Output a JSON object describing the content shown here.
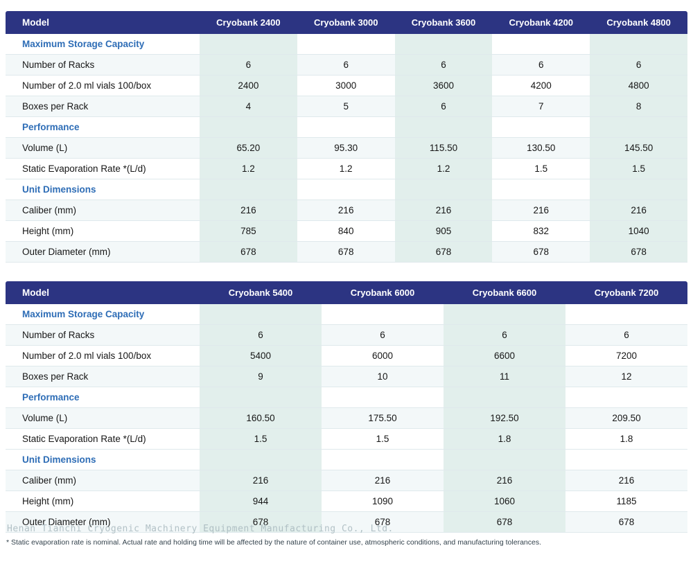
{
  "colors": {
    "header_bg": "#2c3482",
    "section_text": "#2e6db6",
    "column_tint": "#e2efec"
  },
  "tables": [
    {
      "header": {
        "model_label": "Model",
        "models": [
          "Cryobank 2400",
          "Cryobank 3000",
          "Cryobank 3600",
          "Cryobank 4200",
          "Cryobank 4800"
        ]
      },
      "sections": [
        {
          "title": "Maximum Storage Capacity",
          "rows": [
            {
              "label": "Number of Racks",
              "values": [
                "6",
                "6",
                "6",
                "6",
                "6"
              ]
            },
            {
              "label": "Number of 2.0 ml vials 100/box",
              "values": [
                "2400",
                "3000",
                "3600",
                "4200",
                "4800"
              ]
            },
            {
              "label": "Boxes per Rack",
              "values": [
                "4",
                "5",
                "6",
                "7",
                "8"
              ]
            }
          ]
        },
        {
          "title": "Performance",
          "rows": [
            {
              "label": "Volume (L)",
              "values": [
                "65.20",
                "95.30",
                "115.50",
                "130.50",
                "145.50"
              ]
            },
            {
              "label": "Static Evaporation Rate *(L/d)",
              "values": [
                "1.2",
                "1.2",
                "1.2",
                "1.5",
                "1.5"
              ]
            }
          ]
        },
        {
          "title": "Unit Dimensions",
          "rows": [
            {
              "label": "Caliber (mm)",
              "values": [
                "216",
                "216",
                "216",
                "216",
                "216"
              ]
            },
            {
              "label": "Height (mm)",
              "values": [
                "785",
                "840",
                "905",
                "832",
                "1040"
              ]
            },
            {
              "label": "Outer Diameter (mm)",
              "values": [
                "678",
                "678",
                "678",
                "678",
                "678"
              ]
            }
          ]
        }
      ]
    },
    {
      "header": {
        "model_label": "Model",
        "models": [
          "Cryobank 5400",
          "Cryobank 6000",
          "Cryobank 6600",
          "Cryobank 7200"
        ]
      },
      "sections": [
        {
          "title": "Maximum Storage Capacity",
          "rows": [
            {
              "label": "Number of Racks",
              "values": [
                "6",
                "6",
                "6",
                "6"
              ]
            },
            {
              "label": "Number of 2.0 ml vials 100/box",
              "values": [
                "5400",
                "6000",
                "6600",
                "7200"
              ]
            },
            {
              "label": "Boxes per Rack",
              "values": [
                "9",
                "10",
                "11",
                "12"
              ]
            }
          ]
        },
        {
          "title": "Performance",
          "rows": [
            {
              "label": "Volume (L)",
              "values": [
                "160.50",
                "175.50",
                "192.50",
                "209.50"
              ]
            },
            {
              "label": "Static Evaporation Rate *(L/d)",
              "values": [
                "1.5",
                "1.5",
                "1.8",
                "1.8"
              ]
            }
          ]
        },
        {
          "title": "Unit Dimensions",
          "rows": [
            {
              "label": "Caliber (mm)",
              "values": [
                "216",
                "216",
                "216",
                "216"
              ]
            },
            {
              "label": "Height (mm)",
              "values": [
                "944",
                "1090",
                "1060",
                "1185"
              ]
            },
            {
              "label": "Outer Diameter (mm)",
              "values": [
                "678",
                "678",
                "678",
                "678"
              ]
            }
          ]
        }
      ]
    }
  ],
  "watermark": "Henan Tianchi Cryogenic Machinery Equipment Manufacturing Co., Ltd.",
  "footnote": "* Static evaporation rate is nominal. Actual rate and holding time will be affected by the nature of container use, atmospheric conditions, and manufacturing tolerances."
}
